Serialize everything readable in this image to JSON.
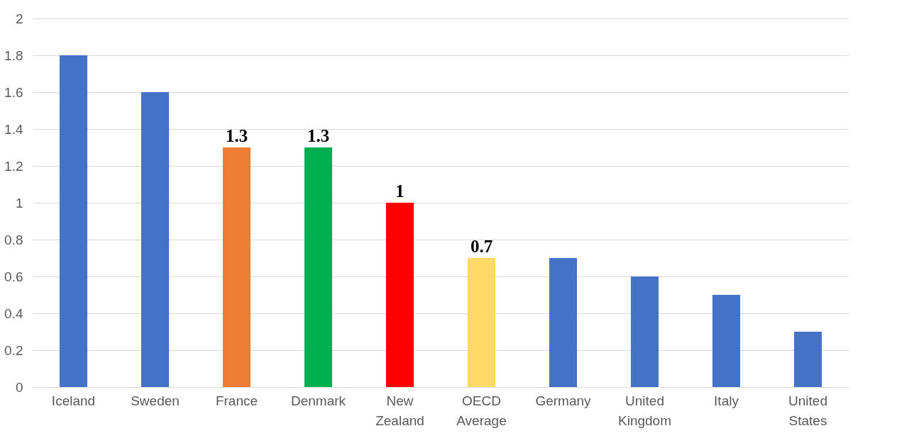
{
  "chart_data": {
    "type": "bar",
    "categories": [
      "Iceland",
      "Sweden",
      "France",
      "Denmark",
      "New Zealand",
      "OECD Average",
      "Germany",
      "United Kingdom",
      "Italy",
      "United States"
    ],
    "values": [
      1.8,
      1.6,
      1.3,
      1.3,
      1.0,
      0.7,
      0.7,
      0.6,
      0.5,
      0.3
    ],
    "colors": [
      "#4472c4",
      "#4472c4",
      "#ed7d31",
      "#00b050",
      "#ff0000",
      "#ffd966",
      "#4472c4",
      "#4472c4",
      "#4472c4",
      "#4472c4"
    ],
    "value_labels": [
      null,
      null,
      "1.3",
      "1.3",
      "1",
      "0.7",
      null,
      null,
      null,
      null
    ],
    "ylim": [
      0,
      2
    ],
    "yticks": [
      0,
      0.2,
      0.4,
      0.6,
      0.8,
      1,
      1.2,
      1.4,
      1.6,
      1.8,
      2
    ],
    "grid": "y",
    "legend": false
  }
}
